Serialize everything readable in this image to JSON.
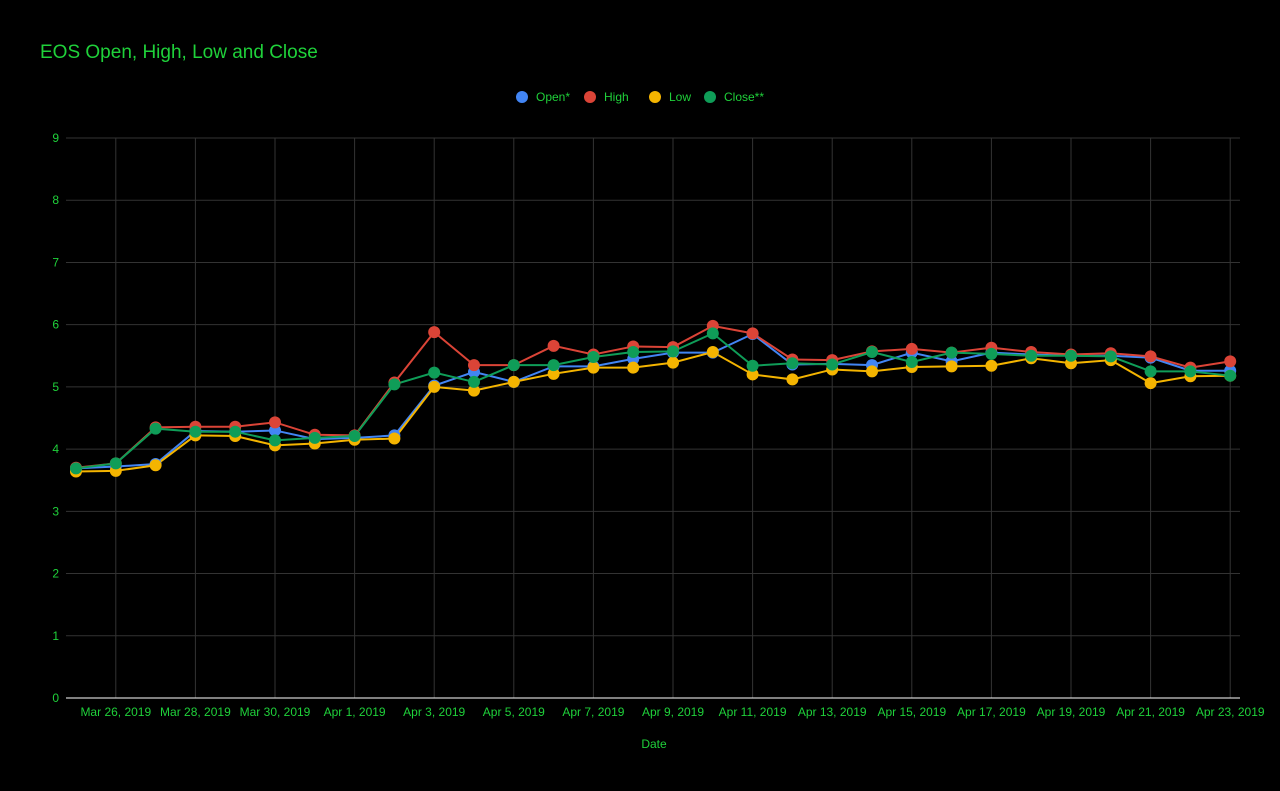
{
  "chart_data": {
    "type": "line",
    "title": "EOS Open, High, Low and Close",
    "xlabel": "Date",
    "ylabel": "",
    "ylim": [
      0,
      9
    ],
    "y_ticks": [
      "0",
      "1",
      "2",
      "3",
      "4",
      "5",
      "6",
      "7",
      "8",
      "9"
    ],
    "grid": true,
    "legend_position": "top",
    "text_color": "#1fd13a",
    "grid_color": "#333333",
    "x": [
      "Mar 25, 2019",
      "Mar 26, 2019",
      "Mar 27, 2019",
      "Mar 28, 2019",
      "Mar 29, 2019",
      "Mar 30, 2019",
      "Mar 31, 2019",
      "Apr 1, 2019",
      "Apr 2, 2019",
      "Apr 3, 2019",
      "Apr 4, 2019",
      "Apr 5, 2019",
      "Apr 6, 2019",
      "Apr 7, 2019",
      "Apr 8, 2019",
      "Apr 9, 2019",
      "Apr 10, 2019",
      "Apr 11, 2019",
      "Apr 12, 2019",
      "Apr 13, 2019",
      "Apr 14, 2019",
      "Apr 15, 2019",
      "Apr 16, 2019",
      "Apr 17, 2019",
      "Apr 18, 2019",
      "Apr 19, 2019",
      "Apr 20, 2019",
      "Apr 21, 2019",
      "Apr 22, 2019",
      "Apr 23, 2019"
    ],
    "x_tick_labels": [
      "Mar 26, 2019",
      "Mar 28, 2019",
      "Mar 30, 2019",
      "Apr 1, 2019",
      "Apr 3, 2019",
      "Apr 5, 2019",
      "Apr 7, 2019",
      "Apr 9, 2019",
      "Apr 11, 2019",
      "Apr 13, 2019",
      "Apr 15, 2019",
      "Apr 17, 2019",
      "Apr 19, 2019",
      "Apr 21, 2019",
      "Apr 23, 2019"
    ],
    "series": [
      {
        "name": "Open*",
        "color": "#4285f4",
        "values": [
          3.69,
          3.72,
          3.76,
          4.29,
          4.28,
          4.3,
          4.16,
          4.18,
          4.22,
          5.02,
          5.24,
          5.08,
          5.33,
          5.33,
          5.45,
          5.55,
          5.55,
          5.85,
          5.36,
          5.37,
          5.35,
          5.55,
          5.41,
          5.55,
          5.52,
          5.5,
          5.5,
          5.47,
          5.26,
          5.26
        ]
      },
      {
        "name": "High",
        "color": "#db4437",
        "values": [
          3.7,
          3.77,
          4.35,
          4.36,
          4.36,
          4.43,
          4.23,
          4.22,
          5.07,
          5.88,
          5.35,
          5.35,
          5.66,
          5.52,
          5.65,
          5.64,
          5.98,
          5.86,
          5.44,
          5.43,
          5.57,
          5.61,
          5.55,
          5.63,
          5.56,
          5.52,
          5.54,
          5.49,
          5.31,
          5.41
        ]
      },
      {
        "name": "Low",
        "color": "#f4b400",
        "values": [
          3.64,
          3.65,
          3.74,
          4.22,
          4.21,
          4.06,
          4.09,
          4.15,
          4.17,
          5.0,
          4.94,
          5.08,
          5.21,
          5.31,
          5.31,
          5.39,
          5.56,
          5.2,
          5.12,
          5.28,
          5.25,
          5.32,
          5.33,
          5.34,
          5.46,
          5.38,
          5.43,
          5.06,
          5.17,
          5.18
        ]
      },
      {
        "name": "Close**",
        "color": "#0f9d58",
        "values": [
          3.69,
          3.77,
          4.33,
          4.28,
          4.28,
          4.14,
          4.18,
          4.21,
          5.04,
          5.23,
          5.08,
          5.35,
          5.35,
          5.48,
          5.56,
          5.57,
          5.86,
          5.34,
          5.38,
          5.36,
          5.56,
          5.4,
          5.55,
          5.53,
          5.5,
          5.5,
          5.49,
          5.25,
          5.25,
          5.18
        ]
      }
    ]
  }
}
